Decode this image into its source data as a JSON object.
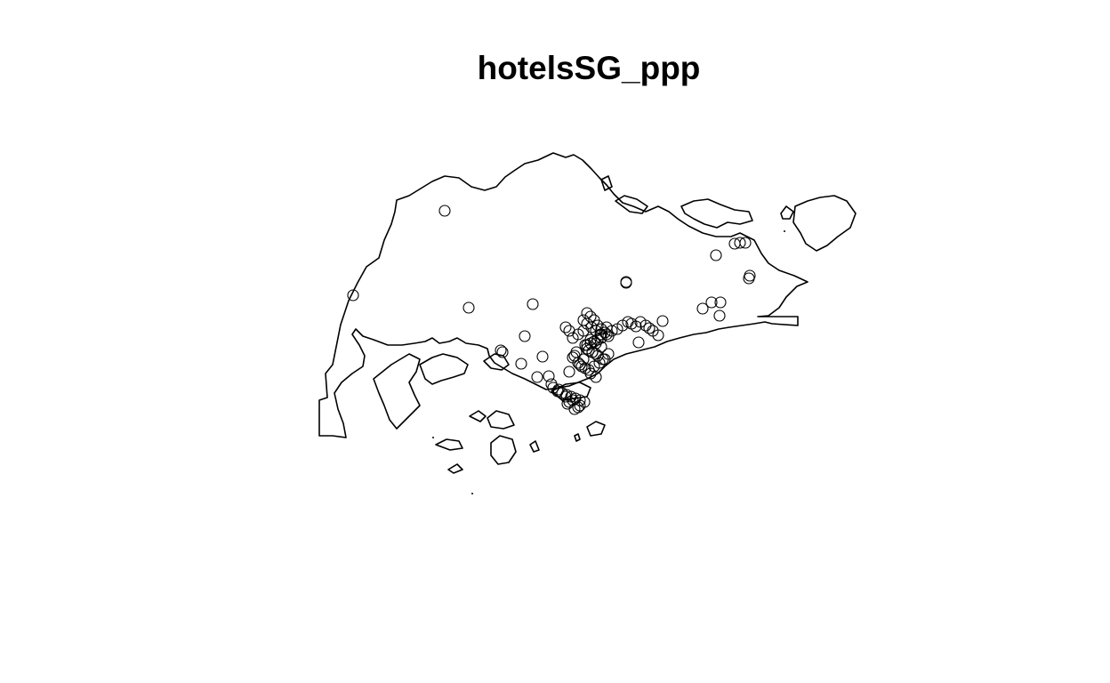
{
  "chart_data": {
    "type": "scatter",
    "title": "hotelsSG_ppp",
    "xlabel": "",
    "ylabel": "",
    "grid": false,
    "legend": "none",
    "marker": "open-circle",
    "colors": {
      "points": "#000000",
      "outline": "#000000",
      "background": "#ffffff"
    },
    "x": [
      500,
      397,
      527,
      599,
      704,
      704,
      805,
      826,
      832,
      838,
      843,
      842,
      800,
      810,
      790,
      809,
      745,
      740,
      734,
      730,
      726,
      720,
      715,
      710,
      706,
      700,
      694,
      688,
      718,
      590,
      565,
      563,
      610,
      586,
      604,
      617,
      640,
      660,
      664,
      668,
      672,
      676,
      680,
      684,
      664,
      670,
      676,
      682,
      656,
      650,
      644,
      640,
      636,
      660,
      666,
      672,
      678,
      684,
      656,
      650,
      646,
      654,
      662,
      668,
      674,
      680,
      664,
      670,
      656,
      660,
      665,
      670,
      675,
      658,
      664,
      668,
      672,
      662,
      666,
      670,
      676,
      622,
      627,
      632,
      637,
      642,
      647,
      652,
      657,
      620,
      628,
      636,
      644,
      652,
      650,
      638,
      640,
      646,
      660,
      668,
      676,
      682,
      648,
      644,
      652,
      658
    ],
    "y": [
      237,
      332,
      346,
      342,
      317,
      318,
      287,
      274,
      273,
      273,
      310,
      313,
      340,
      340,
      347,
      355,
      361,
      377,
      372,
      369,
      366,
      362,
      367,
      364,
      362,
      366,
      370,
      372,
      385,
      378,
      396,
      394,
      401,
      409,
      424,
      423,
      418,
      352,
      356,
      360,
      366,
      370,
      374,
      378,
      382,
      386,
      376,
      368,
      372,
      376,
      380,
      372,
      368,
      392,
      396,
      400,
      404,
      398,
      404,
      408,
      400,
      412,
      416,
      412,
      408,
      404,
      420,
      424,
      360,
      364,
      368,
      372,
      376,
      388,
      386,
      384,
      382,
      394,
      396,
      398,
      390,
      436,
      440,
      442,
      444,
      446,
      448,
      450,
      452,
      432,
      438,
      446,
      450,
      456,
      458,
      454,
      452,
      460,
      388,
      384,
      380,
      376,
      396,
      402,
      410,
      414
    ],
    "xlim": [
      355,
      975
    ],
    "ylim": [
      560,
      170
    ]
  }
}
